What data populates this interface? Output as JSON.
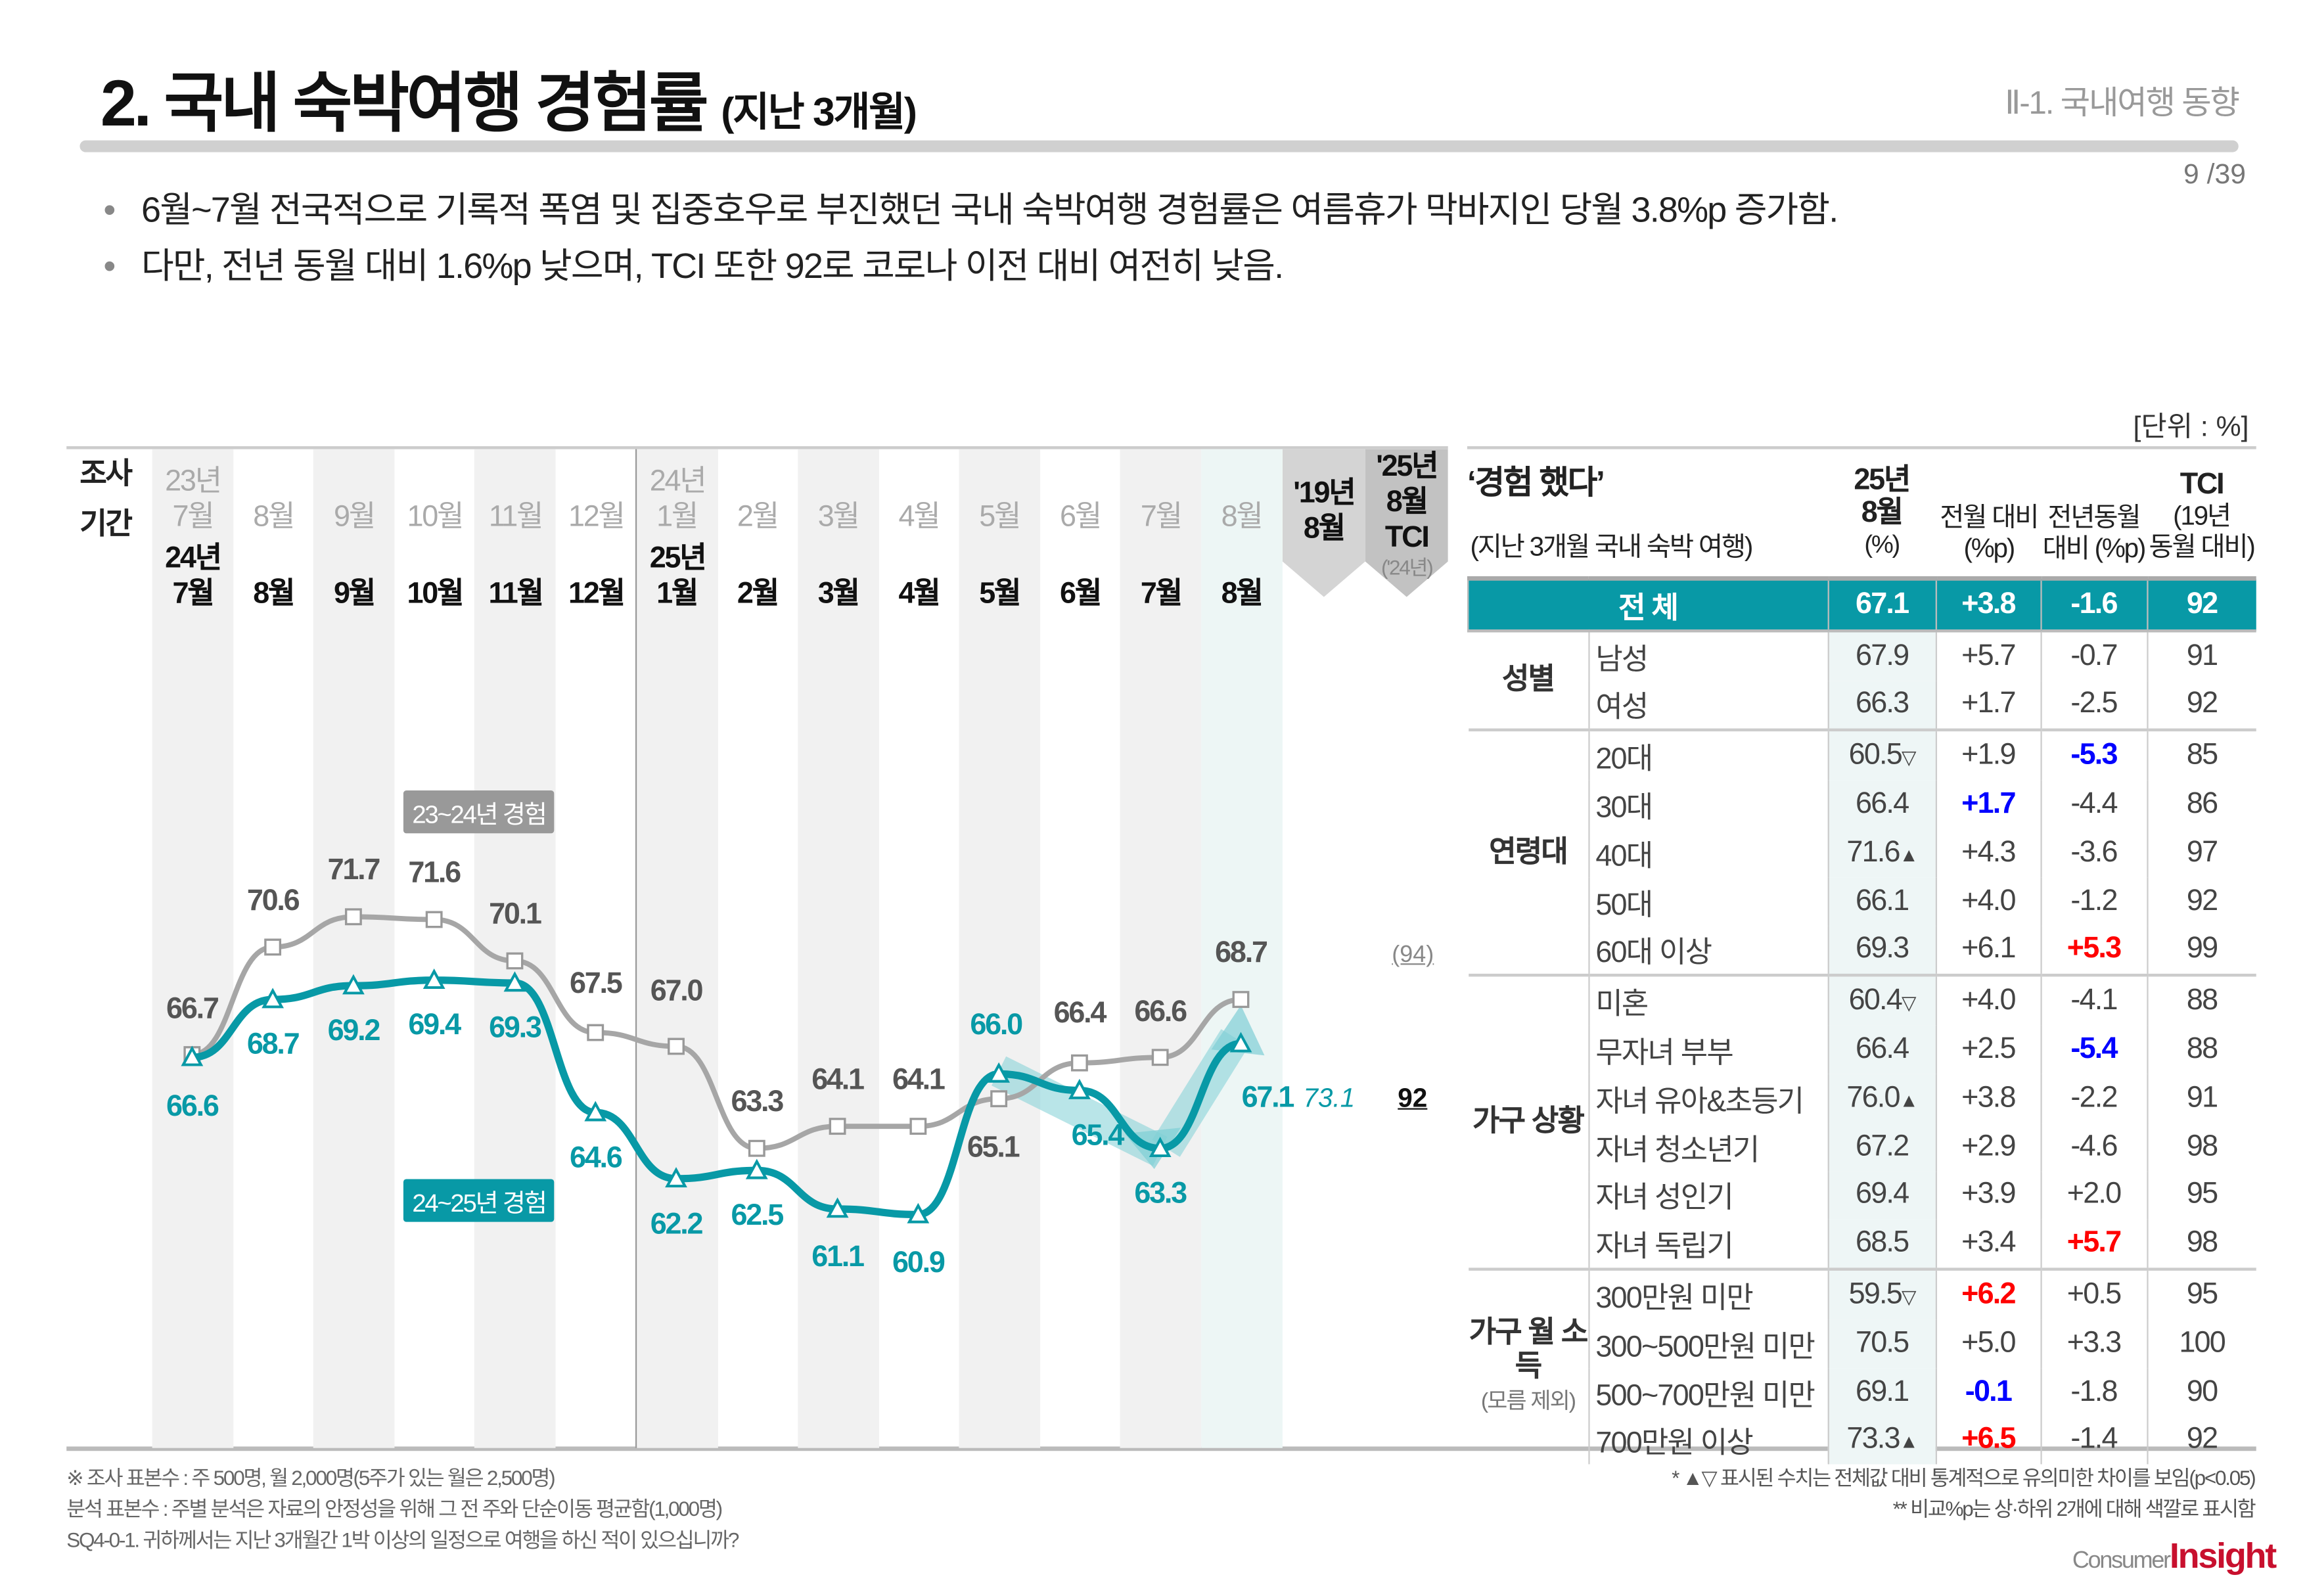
{
  "header": {
    "title": "2. 국내 숙박여행 경험률",
    "subtitle": "(지난 3개월)",
    "section": "Ⅱ-1. 국내여행 동향",
    "page": "9 /39"
  },
  "bullets": [
    "6월~7월 전국적으로 기록적 폭염 및 집중호우로 부진했던 국내 숙박여행 경험률은 여름휴가 막바지인 당월 3.8%p 증가함.",
    "다만, 전년 동월 대비 1.6%p 낮으며, TCI 또한 92로 코로나 이전 대비 여전히 낮음."
  ],
  "unit": "[단위 : %]",
  "chart_data": {
    "type": "line",
    "period_label": [
      "조사",
      "기간"
    ],
    "top_year_labels": [
      "23년",
      "24년"
    ],
    "bottom_year_labels": [
      "24년",
      "25년"
    ],
    "categories": [
      "7월",
      "8월",
      "9월",
      "10월",
      "11월",
      "12월",
      "1월",
      "2월",
      "3월",
      "4월",
      "5월",
      "6월",
      "7월",
      "8월"
    ],
    "series": [
      {
        "name": "23~24년 경험",
        "color": "#a6a6a6",
        "marker": "square",
        "values": [
          66.7,
          70.6,
          71.7,
          71.6,
          70.1,
          67.5,
          67.0,
          63.3,
          64.1,
          64.1,
          65.1,
          66.4,
          66.6,
          68.7
        ]
      },
      {
        "name": "24~25년 경험",
        "color": "#0899a6",
        "marker": "triangle",
        "values": [
          66.6,
          68.7,
          69.2,
          69.4,
          69.3,
          64.6,
          62.2,
          62.5,
          61.1,
          60.9,
          66.0,
          65.4,
          63.3,
          67.1
        ]
      }
    ],
    "tci_2019_header": [
      "'19년",
      "8월"
    ],
    "tci_2025_header": [
      "'25년",
      "8월",
      "TCI",
      "('24년)"
    ],
    "tci_2019_value": "73.1",
    "tci_2025_value": "92",
    "tci_2024_value": "(94)",
    "accent": "#0899a6"
  },
  "table": {
    "headers": {
      "title": "‘경험 했다’",
      "title_sub": "(지난 3개월 국내 숙박 여행)",
      "val": [
        "25년",
        "8월",
        "(%)"
      ],
      "mom": [
        "전월 대비",
        "(%p)"
      ],
      "yoy": [
        "전년동월",
        "대비 (%p)"
      ],
      "tci": [
        "TCI",
        "(19년",
        "동월 대비)"
      ]
    },
    "total": {
      "label": "전 체",
      "val": "67.1",
      "mom": "+3.8",
      "yoy": "-1.6",
      "tci": "92"
    },
    "groups": [
      {
        "label": "성별",
        "sub": "",
        "rows": [
          {
            "item": "남성",
            "val": "67.9",
            "sig": "",
            "mom": "+5.7",
            "yoy": "-0.7",
            "tci": "91"
          },
          {
            "item": "여성",
            "val": "66.3",
            "sig": "",
            "mom": "+1.7",
            "yoy": "-2.5",
            "tci": "92"
          }
        ]
      },
      {
        "label": "연령대",
        "sub": "",
        "rows": [
          {
            "item": "20대",
            "val": "60.5",
            "sig": "▽",
            "mom": "+1.9",
            "yoy": "-5.3",
            "yoy_c": "blue",
            "tci": "85"
          },
          {
            "item": "30대",
            "val": "66.4",
            "sig": "",
            "mom": "+1.7",
            "mom_c": "blue",
            "yoy": "-4.4",
            "tci": "86"
          },
          {
            "item": "40대",
            "val": "71.6",
            "sig": "▲",
            "mom": "+4.3",
            "yoy": "-3.6",
            "tci": "97"
          },
          {
            "item": "50대",
            "val": "66.1",
            "sig": "",
            "mom": "+4.0",
            "yoy": "-1.2",
            "tci": "92"
          },
          {
            "item": "60대 이상",
            "val": "69.3",
            "sig": "",
            "mom": "+6.1",
            "yoy": "+5.3",
            "yoy_c": "red",
            "tci": "99"
          }
        ]
      },
      {
        "label": "가구 상황",
        "sub": "",
        "rows": [
          {
            "item": "미혼",
            "val": "60.4",
            "sig": "▽",
            "mom": "+4.0",
            "yoy": "-4.1",
            "tci": "88"
          },
          {
            "item": "무자녀 부부",
            "val": "66.4",
            "sig": "",
            "mom": "+2.5",
            "yoy": "-5.4",
            "yoy_c": "blue",
            "tci": "88"
          },
          {
            "item": "자녀 유아&초등기",
            "val": "76.0",
            "sig": "▲",
            "mom": "+3.8",
            "yoy": "-2.2",
            "tci": "91"
          },
          {
            "item": "자녀 청소년기",
            "val": "67.2",
            "sig": "",
            "mom": "+2.9",
            "yoy": "-4.6",
            "tci": "98"
          },
          {
            "item": "자녀 성인기",
            "val": "69.4",
            "sig": "",
            "mom": "+3.9",
            "yoy": "+2.0",
            "tci": "95"
          },
          {
            "item": "자녀 독립기",
            "val": "68.5",
            "sig": "",
            "mom": "+3.4",
            "yoy": "+5.7",
            "yoy_c": "red",
            "tci": "98"
          }
        ]
      },
      {
        "label": "가구 월 소득",
        "sub": "(모름 제외)",
        "rows": [
          {
            "item": "300만원 미만",
            "val": "59.5",
            "sig": "▽",
            "mom": "+6.2",
            "mom_c": "red",
            "yoy": "+0.5",
            "tci": "95"
          },
          {
            "item": "300~500만원 미만",
            "val": "70.5",
            "sig": "",
            "mom": "+5.0",
            "yoy": "+3.3",
            "tci": "100"
          },
          {
            "item": "500~700만원 미만",
            "val": "69.1",
            "sig": "",
            "mom": "-0.1",
            "mom_c": "blue",
            "yoy": "-1.8",
            "tci": "90"
          },
          {
            "item": "700만원 이상",
            "val": "73.3",
            "sig": "▲",
            "mom": "+6.5",
            "mom_c": "red",
            "yoy": "-1.4",
            "tci": "92"
          }
        ]
      }
    ]
  },
  "notes": [
    "※ 조사 표본수 : 주 500명, 월 2,000명(5주가 있는 월은 2,500명)",
    "분석 표본수 : 주별 분석은 자료의 안정성을 위해 그 전 주와 단순이동 평균함(1,000명)",
    "SQ4-0-1. 귀하께서는 지난 3개월간 1박 이상의 일정으로 여행을 하신 적이 있으십니까?"
  ],
  "notes_right": [
    "* ▲▽ 표시된 수치는 전체값 대비 통계적으로 유의미한 차이를 보임(p<0.05)",
    "** 비교%p는 상·하위 2개에 대해 색깔로 표시함"
  ],
  "logo": "Consumer Insight"
}
